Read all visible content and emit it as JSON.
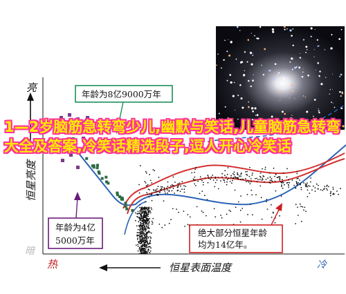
{
  "chart_data": {
    "type": "scatter",
    "title": "",
    "xlabel": "恒星表面温度",
    "ylabel": "恒星亮度",
    "x_hot_label": "热",
    "x_cold_label": "冷",
    "y_bright_label": "亮",
    "y_dark_label": "暗",
    "annotations": [
      {
        "text": "年龄为8亿9000万年",
        "lines": [
          "年龄为8亿9000万年"
        ],
        "color": "#1a8f5a"
      },
      {
        "text": "年龄为4亿5000万年",
        "lines": [
          "年龄为4亿",
          "5000万年"
        ],
        "color": "#6a1b7a"
      },
      {
        "text": "绝大部分恒星年龄均为14亿年。",
        "lines": [
          "绝大部分恒星年龄",
          "均为14亿年。"
        ],
        "color": "#cc1f1f"
      }
    ],
    "series": [
      {
        "name": "",
        "color": "#7a3a8c"
      },
      {
        "name": "",
        "color": "#2f6b43"
      },
      {
        "name": "",
        "color": "#111111"
      }
    ]
  },
  "overlay_title": "1—2岁脑筋急转弯少儿,幽默与笑话,儿童脑筋急转弯大全及答案,冷笑话精选段子,逗人开心冷笑话",
  "colors": {
    "axis": "#111111",
    "isochrone_blue": "#2b63b5",
    "isochrone_red": "#d43030",
    "isochrone_dashed": "#2b63b5"
  }
}
